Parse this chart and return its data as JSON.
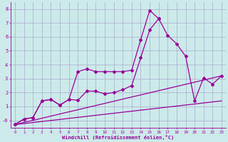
{
  "xlabel": "Windchill (Refroidissement éolien,°C)",
  "background_color": "#cceaea",
  "grid_color": "#aaaacc",
  "line_color": "#990099",
  "x_values": [
    0,
    1,
    2,
    3,
    4,
    5,
    6,
    7,
    8,
    9,
    10,
    11,
    12,
    13,
    14,
    15,
    16,
    17,
    18,
    19,
    20,
    21,
    22,
    23
  ],
  "line1": [
    -0.3,
    0.1,
    0.2,
    1.4,
    1.5,
    1.1,
    1.5,
    3.5,
    3.7,
    3.5,
    3.5,
    3.5,
    3.5,
    3.6,
    5.8,
    7.9,
    7.3,
    null,
    null,
    null,
    null,
    null,
    null,
    null
  ],
  "line2": [
    -0.3,
    0.1,
    0.2,
    1.4,
    1.5,
    1.1,
    1.5,
    1.45,
    2.1,
    2.1,
    1.9,
    2.0,
    2.2,
    2.5,
    4.5,
    6.5,
    7.3,
    6.1,
    5.5,
    4.6,
    1.4,
    3.05,
    2.6,
    3.2
  ],
  "line3_x": [
    0,
    23
  ],
  "line3_y": [
    -0.3,
    3.2
  ],
  "line4_x": [
    0,
    23
  ],
  "line4_y": [
    -0.3,
    1.4
  ],
  "xlim": [
    -0.5,
    23.5
  ],
  "ylim": [
    -0.55,
    8.5
  ],
  "yticks": [
    0,
    1,
    2,
    3,
    4,
    5,
    6,
    7,
    8
  ],
  "ytick_labels": [
    "-0",
    "1",
    "2",
    "3",
    "4",
    "5",
    "6",
    "7",
    "8"
  ],
  "xticks": [
    0,
    1,
    2,
    3,
    4,
    5,
    6,
    7,
    8,
    9,
    10,
    11,
    12,
    13,
    14,
    15,
    16,
    17,
    18,
    19,
    20,
    21,
    22,
    23
  ],
  "marker": "D",
  "markersize": 2.0,
  "linewidth": 0.9
}
